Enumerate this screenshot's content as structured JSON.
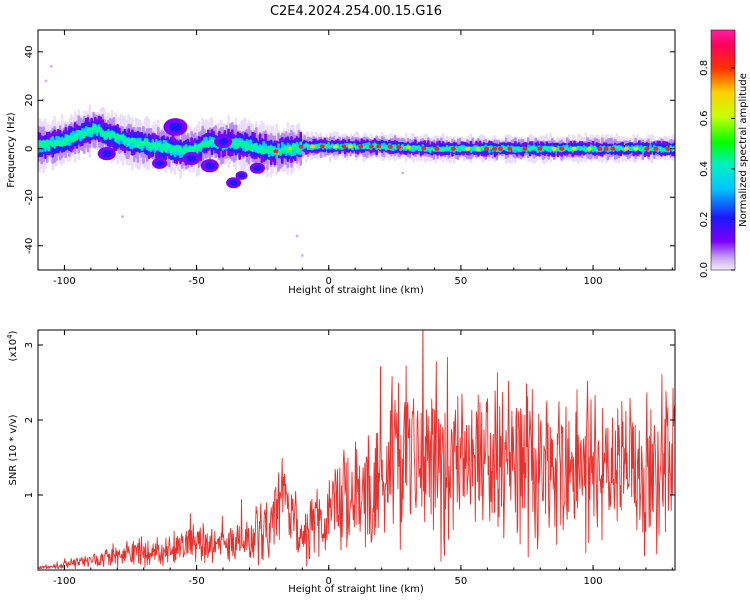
{
  "title": "C2E4.2024.254.00.15.G16",
  "chart_data": [
    {
      "type": "heatmap",
      "xlabel": "Height of straight line (km)",
      "ylabel": "Frequency (Hz)",
      "xlim": [
        -110,
        131
      ],
      "ylim": [
        -50,
        49
      ],
      "xticks": [
        -100,
        -50,
        0,
        50,
        100
      ],
      "yticks": [
        -40,
        -20,
        0,
        20,
        40
      ],
      "ridge": [
        [
          -110,
          1
        ],
        [
          -100,
          3
        ],
        [
          -92,
          7
        ],
        [
          -88,
          8
        ],
        [
          -82,
          5
        ],
        [
          -75,
          3
        ],
        [
          -70,
          2
        ],
        [
          -65,
          1
        ],
        [
          -60,
          0
        ],
        [
          -55,
          -1
        ],
        [
          -50,
          0
        ],
        [
          -45,
          3
        ],
        [
          -40,
          2
        ],
        [
          -35,
          2
        ],
        [
          -30,
          1
        ],
        [
          -25,
          0
        ],
        [
          -20,
          -1
        ],
        [
          -15,
          0
        ],
        [
          -10,
          1
        ],
        [
          0,
          1
        ],
        [
          10,
          1
        ],
        [
          20,
          1
        ],
        [
          40,
          0
        ],
        [
          60,
          0
        ],
        [
          80,
          0
        ],
        [
          100,
          0
        ],
        [
          131,
          0
        ]
      ],
      "colorbar": {
        "label": "Normalized spectral amplitude",
        "range": [
          0,
          0.95
        ],
        "ticks": [
          "0.0",
          "0.2",
          "0.4",
          "0.6",
          "0.8"
        ]
      }
    },
    {
      "type": "line",
      "xlabel": "Height of straight line (km)",
      "ylabel": "SNR (10 * v/v)",
      "scale_label": "(x10",
      "scale_exp": "4",
      "xlim": [
        -110,
        131
      ],
      "ylim": [
        0,
        3.2
      ],
      "xticks": [
        -100,
        -50,
        0,
        50,
        100
      ],
      "yticks": [
        1,
        2,
        3
      ],
      "line_color": "#e8302c",
      "trend": [
        [
          -110,
          0.03
        ],
        [
          -100,
          0.07
        ],
        [
          -90,
          0.12
        ],
        [
          -80,
          0.18
        ],
        [
          -70,
          0.25
        ],
        [
          -60,
          0.3
        ],
        [
          -50,
          0.35
        ],
        [
          -40,
          0.32
        ],
        [
          -30,
          0.4
        ],
        [
          -25,
          0.55
        ],
        [
          -20,
          0.7
        ],
        [
          -15,
          0.9
        ],
        [
          -10,
          0.4
        ],
        [
          -5,
          0.6
        ],
        [
          0,
          0.75
        ],
        [
          5,
          1.0
        ],
        [
          10,
          0.95
        ],
        [
          15,
          1.05
        ],
        [
          20,
          1.15
        ],
        [
          25,
          1.45
        ],
        [
          30,
          1.5
        ],
        [
          40,
          1.5
        ],
        [
          50,
          1.6
        ],
        [
          60,
          1.5
        ],
        [
          70,
          1.45
        ],
        [
          80,
          1.4
        ],
        [
          90,
          1.4
        ],
        [
          100,
          1.35
        ],
        [
          110,
          1.3
        ],
        [
          120,
          1.35
        ],
        [
          131,
          1.5
        ]
      ]
    }
  ]
}
